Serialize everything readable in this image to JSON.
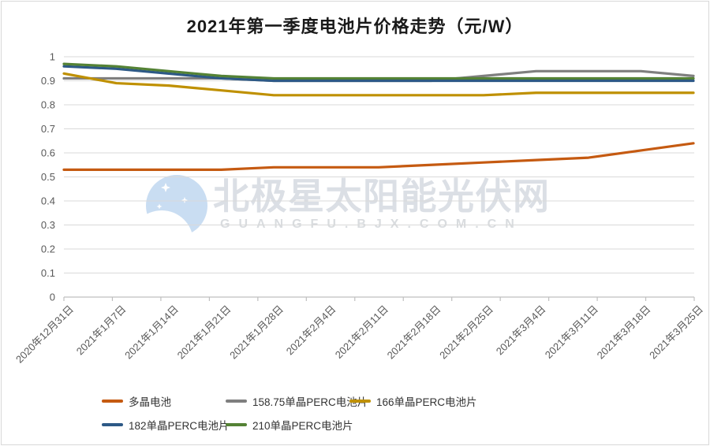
{
  "title": "2021年第一季度电池片价格走势（元/W）",
  "watermark": {
    "line1": "北极星太阳能光伏网",
    "line2": "GUANGFU.BJX.COM.CN",
    "logo_color": "#c9ddf2",
    "text_color": "#dbdfe5",
    "url_color": "#d9dcdf"
  },
  "axis_colors": {
    "gridline": "#d9d9d9",
    "axis_line": "#bfbfbf",
    "tick_label": "#595959"
  },
  "chart_data": {
    "type": "line",
    "title": "2021年第一季度电池片价格走势（元/W）",
    "categories": [
      "2020年12月31日",
      "2021年1月7日",
      "2021年1月14日",
      "2021年1月21日",
      "2021年1月28日",
      "2021年2月4日",
      "2021年2月11日",
      "2021年2月18日",
      "2021年2月25日",
      "2021年3月4日",
      "2021年3月11日",
      "2021年3月18日",
      "2021年3月25日"
    ],
    "series": [
      {
        "name": "多晶电池",
        "color": "#c55a11",
        "values": [
          0.53,
          0.53,
          0.53,
          0.53,
          0.54,
          0.54,
          0.54,
          0.55,
          0.56,
          0.57,
          0.58,
          0.61,
          0.64
        ]
      },
      {
        "name": "158.75单晶PERC电池片",
        "color": "#7f7f7f",
        "values": [
          0.91,
          0.91,
          0.91,
          0.91,
          0.9,
          0.9,
          0.9,
          0.9,
          0.92,
          0.94,
          0.94,
          0.94,
          0.92
        ]
      },
      {
        "name": "166单晶PERC电池片",
        "color": "#bf9000",
        "values": [
          0.93,
          0.89,
          0.88,
          0.86,
          0.84,
          0.84,
          0.84,
          0.84,
          0.84,
          0.85,
          0.85,
          0.85,
          0.85
        ]
      },
      {
        "name": "182单晶PERC电池片",
        "color": "#2d5986",
        "values": [
          0.96,
          0.95,
          0.93,
          0.91,
          0.9,
          0.9,
          0.9,
          0.9,
          0.9,
          0.9,
          0.9,
          0.9,
          0.9
        ]
      },
      {
        "name": "210单晶PERC电池片",
        "color": "#548235",
        "values": [
          0.97,
          0.96,
          0.94,
          0.92,
          0.91,
          0.91,
          0.91,
          0.91,
          0.91,
          0.91,
          0.91,
          0.91,
          0.91
        ]
      }
    ],
    "xlabel": "",
    "ylabel": "",
    "ylim": [
      0,
      1
    ],
    "ytick_labels": [
      "0",
      "0.1",
      "0.2",
      "0.3",
      "0.4",
      "0.5",
      "0.6",
      "0.7",
      "0.8",
      "0.9",
      "1"
    ],
    "grid": true,
    "legend_position": "bottom",
    "legend_rows": [
      [
        0,
        1,
        2
      ],
      [
        3,
        4
      ]
    ]
  }
}
